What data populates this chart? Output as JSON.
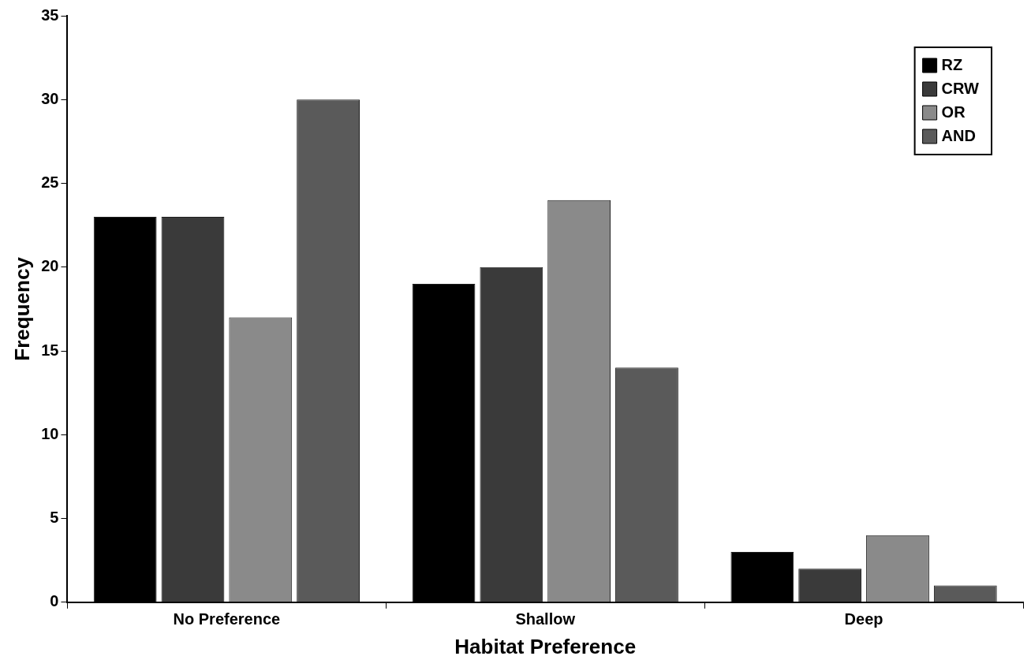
{
  "chart_data": {
    "type": "bar",
    "xlabel": "Habitat Preference",
    "ylabel": "Frequency",
    "categories": [
      "No Preference",
      "Shallow",
      "Deep"
    ],
    "series": [
      {
        "name": "RZ",
        "color": "#000000",
        "values": [
          23,
          19,
          3
        ]
      },
      {
        "name": "CRW",
        "color": "#3a3a3a",
        "values": [
          23,
          20,
          2
        ]
      },
      {
        "name": "OR",
        "color": "#8a8a8a",
        "values": [
          17,
          24,
          4
        ]
      },
      {
        "name": "AND",
        "color": "#5a5a5a",
        "values": [
          30,
          14,
          1
        ]
      }
    ],
    "ylim": [
      0,
      35
    ],
    "yticks": [
      0,
      5,
      10,
      15,
      20,
      25,
      30,
      35
    ],
    "grid": false,
    "legend": "top right"
  }
}
